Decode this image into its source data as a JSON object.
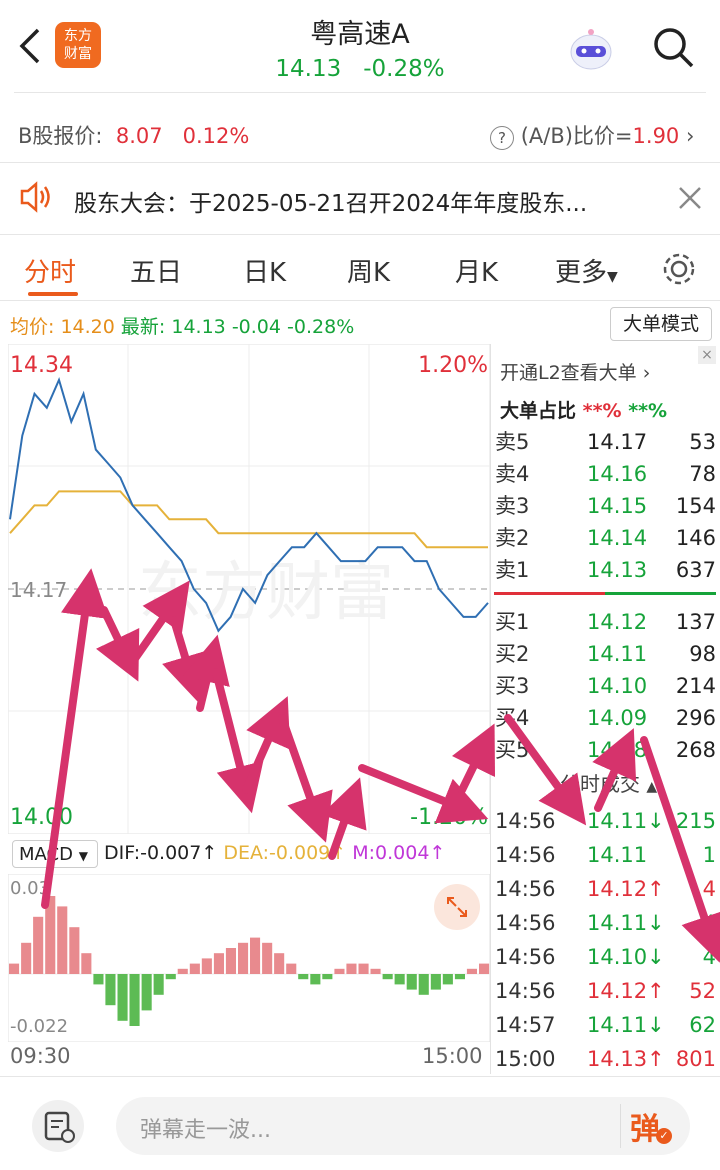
{
  "header": {
    "title": "粤高速A",
    "price": "14.13",
    "change": "-0.28%",
    "logo_text_line1": "东方",
    "logo_text_line2": "财富"
  },
  "bshare": {
    "label": "B股报价:",
    "price": "8.07",
    "change": "0.12%",
    "ratio_label": "(A/B)比价=",
    "ratio_value": "1.90"
  },
  "notice": {
    "text": "股东大会：于2025-05-21召开2024年年度股东..."
  },
  "tabs": [
    "分时",
    "五日",
    "日K",
    "周K",
    "月K",
    "更多"
  ],
  "stats": {
    "avg_label": "均价:",
    "avg_value": "14.20",
    "latest_label": "最新:",
    "latest_value": "14.13",
    "latest_change": "-0.04",
    "latest_pct": "-0.28%",
    "mode_button": "大单模式"
  },
  "chart_data": {
    "type": "line",
    "y_max": "14.34",
    "y_min": "14.00",
    "pct_max": "1.20%",
    "pct_min": "-1.20%",
    "prev_close": "14.17",
    "ylim": [
      14.0,
      14.34
    ],
    "x_start": "09:30",
    "x_end": "15:00",
    "series": [
      {
        "name": "price",
        "color": "#2f6fb3",
        "values": [
          14.22,
          14.28,
          14.31,
          14.3,
          14.32,
          14.29,
          14.31,
          14.27,
          14.26,
          14.25,
          14.23,
          14.22,
          14.21,
          14.2,
          14.19,
          14.17,
          14.16,
          14.14,
          14.15,
          14.17,
          14.16,
          14.18,
          14.19,
          14.2,
          14.2,
          14.21,
          14.2,
          14.19,
          14.19,
          14.19,
          14.2,
          14.2,
          14.2,
          14.19,
          14.19,
          14.17,
          14.16,
          14.15,
          14.15,
          14.16
        ]
      },
      {
        "name": "avg",
        "color": "#e5b23a",
        "values": [
          14.21,
          14.22,
          14.23,
          14.23,
          14.24,
          14.24,
          14.24,
          14.24,
          14.24,
          14.24,
          14.23,
          14.23,
          14.23,
          14.22,
          14.22,
          14.22,
          14.22,
          14.21,
          14.21,
          14.21,
          14.21,
          14.21,
          14.21,
          14.21,
          14.21,
          14.21,
          14.21,
          14.21,
          14.21,
          14.21,
          14.21,
          14.21,
          14.21,
          14.21,
          14.2,
          14.2,
          14.2,
          14.2,
          14.2,
          14.2
        ]
      }
    ]
  },
  "macd": {
    "selector": "MACD",
    "dif_label": "DIF:",
    "dif_value": "-0.007",
    "dea_label": "DEA:",
    "dea_value": "-0.009",
    "m_label": "M:",
    "m_value": "0.004",
    "y_top": "0.03",
    "y_bottom": "-0.022",
    "hist": [
      0.004,
      0.012,
      0.022,
      0.03,
      0.026,
      0.018,
      0.008,
      -0.004,
      -0.012,
      -0.018,
      -0.02,
      -0.014,
      -0.008,
      -0.002,
      0.002,
      0.004,
      0.006,
      0.008,
      0.01,
      0.012,
      0.014,
      0.012,
      0.008,
      0.004,
      -0.002,
      -0.004,
      -0.002,
      0.002,
      0.004,
      0.004,
      0.002,
      -0.002,
      -0.004,
      -0.006,
      -0.008,
      -0.006,
      -0.004,
      -0.002,
      0.002,
      0.004
    ]
  },
  "orderbook": {
    "l2_link": "开通L2查看大单",
    "big_label": "大单占比",
    "big_red": "**%",
    "big_green": "**%",
    "sells": [
      {
        "label": "卖5",
        "price": "14.17",
        "vol": "53"
      },
      {
        "label": "卖4",
        "price": "14.16",
        "vol": "78"
      },
      {
        "label": "卖3",
        "price": "14.15",
        "vol": "154"
      },
      {
        "label": "卖2",
        "price": "14.14",
        "vol": "146"
      },
      {
        "label": "卖1",
        "price": "14.13",
        "vol": "637"
      }
    ],
    "buys": [
      {
        "label": "买1",
        "price": "14.12",
        "vol": "137"
      },
      {
        "label": "买2",
        "price": "14.11",
        "vol": "98"
      },
      {
        "label": "买3",
        "price": "14.10",
        "vol": "214"
      },
      {
        "label": "买4",
        "price": "14.09",
        "vol": "296"
      },
      {
        "label": "买5",
        "price": "14.08",
        "vol": "268"
      }
    ]
  },
  "trades": {
    "title": "分时成交",
    "rows": [
      {
        "time": "14:56",
        "price": "14.11",
        "arrow": "↓",
        "vol": "215",
        "dir": "down"
      },
      {
        "time": "14:56",
        "price": "14.11",
        "arrow": "",
        "vol": "1",
        "dir": "none"
      },
      {
        "time": "14:56",
        "price": "14.12",
        "arrow": "↑",
        "vol": "4",
        "dir": "up"
      },
      {
        "time": "14:56",
        "price": "14.11",
        "arrow": "↓",
        "vol": "4",
        "dir": "down"
      },
      {
        "time": "14:56",
        "price": "14.10",
        "arrow": "↓",
        "vol": "4",
        "dir": "down"
      },
      {
        "time": "14:56",
        "price": "14.12",
        "arrow": "↑",
        "vol": "52",
        "dir": "up"
      },
      {
        "time": "14:57",
        "price": "14.11",
        "arrow": "↓",
        "vol": "62",
        "dir": "down"
      },
      {
        "time": "15:00",
        "price": "14.13",
        "arrow": "↑",
        "vol": "801",
        "dir": "up"
      }
    ]
  },
  "bottom": {
    "placeholder": "弹幕走一波...",
    "danmu_button": "弹"
  },
  "colors": {
    "up": "#e0303a",
    "down": "#16a33a",
    "accent": "#ea5a1c",
    "annotation_arrows": "#d6336c"
  }
}
